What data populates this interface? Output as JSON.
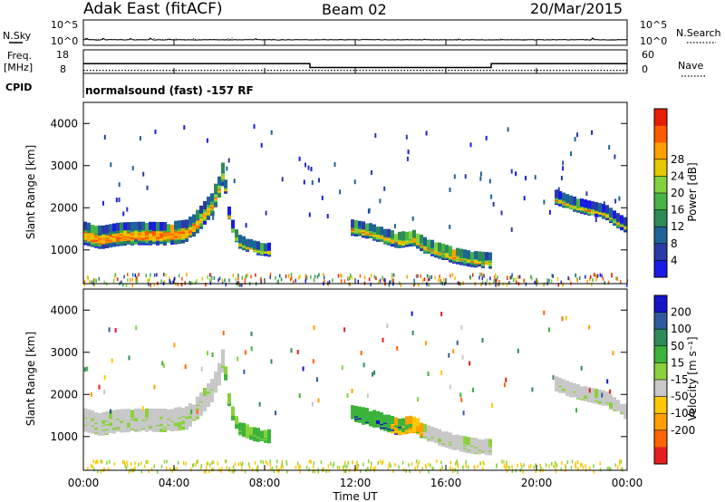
{
  "header": {
    "station": "Adak East (fitACF)",
    "beam": "Beam 02",
    "date": "20/Mar/2015"
  },
  "chart_data": [
    {
      "type": "line",
      "panel": "noise",
      "left_label": "N.Sky",
      "right_label": "N.Search",
      "y_ticks": [
        "10^5",
        "10^0"
      ],
      "x_range_ut": [
        "00:00",
        "24:00"
      ],
      "series": [
        {
          "name": "N.Sky",
          "style": "solid",
          "level_exp": 0.8
        },
        {
          "name": "N.Search",
          "style": "dotted",
          "level_exp": 0.8
        }
      ]
    },
    {
      "type": "line",
      "panel": "frequency-nave",
      "left_label_lines": [
        "Freq.",
        "[MHz]"
      ],
      "right_label": "Nave",
      "left_ticks": [
        "18",
        "8"
      ],
      "right_ticks": [
        "60",
        "0"
      ],
      "freq_ylim": [
        8,
        18
      ],
      "nave_ylim": [
        0,
        60
      ],
      "freq": {
        "x": [
          0,
          10,
          10,
          18,
          18,
          24
        ],
        "y": [
          12.1,
          12.1,
          10.3,
          10.3,
          12.1,
          12.1
        ]
      },
      "nave": {
        "x": [
          0,
          24
        ],
        "y": [
          6,
          6
        ]
      }
    },
    {
      "type": "text",
      "panel": "cpid",
      "left_label": "CPID",
      "text": "normalsound (fast) -157 RF"
    },
    {
      "type": "heatmap",
      "panel": "power",
      "ylabel": "Slant Range [km]",
      "ylim": [
        200,
        4500
      ],
      "y_ticks": [
        1000,
        2000,
        3000,
        4000
      ],
      "colorbar": {
        "label": "Power [dB]",
        "ticks": [
          4,
          8,
          12,
          16,
          20,
          24,
          28
        ],
        "colors": [
          "#1a1ae6",
          "#2a3aa8",
          "#1e6496",
          "#2e8b57",
          "#46b446",
          "#82d23c",
          "#e6c800",
          "#ffa000",
          "#ff5a00",
          "#e61e00"
        ]
      },
      "echo_bands": [
        {
          "x": [
            0.0,
            0.7,
            1.5,
            2.5,
            3.5,
            4.5,
            5.0,
            5.6,
            6.0,
            6.2
          ],
          "r": [
            1400,
            1300,
            1380,
            1400,
            1390,
            1450,
            1700,
            2100,
            2600,
            3100
          ],
          "w": 380
        },
        {
          "x": [
            6.2,
            6.4,
            6.8,
            7.5,
            8.2
          ],
          "r": [
            2500,
            1700,
            1200,
            1050,
            1000
          ],
          "w": 140
        },
        {
          "x": [
            11.8,
            12.5,
            13.2,
            13.8,
            14.5,
            15.0,
            15.6,
            16.3,
            17.0,
            17.9
          ],
          "r": [
            1540,
            1470,
            1350,
            1240,
            1300,
            1120,
            1000,
            880,
            800,
            760
          ],
          "w": 220
        },
        {
          "x": [
            20.8,
            21.5,
            22.2,
            23.0,
            23.5,
            24.0
          ],
          "r": [
            2250,
            2100,
            2000,
            1900,
            1700,
            1550
          ],
          "w": 170
        }
      ]
    },
    {
      "type": "heatmap",
      "panel": "velocity",
      "ylabel": "Slant Range [km]",
      "xlabel": "Time UT",
      "ylim": [
        200,
        4500
      ],
      "y_ticks": [
        1000,
        2000,
        3000,
        4000
      ],
      "x_ticks": [
        "00:00",
        "04:00",
        "08:00",
        "12:00",
        "16:00",
        "20:00",
        "00:00"
      ],
      "colorbar": {
        "label": "Velocity [m s⁻¹]",
        "ticks": [
          "200",
          "100",
          "50",
          "15",
          "-15",
          "-50",
          "-100",
          "-200"
        ],
        "colors": [
          "#1414c8",
          "#2f5aa0",
          "#2e8b57",
          "#3cb43c",
          "#8ad23c",
          "#c8c8c8",
          "#ffc800",
          "#ffa000",
          "#ff6400",
          "#e61e1e"
        ]
      },
      "echo_bands": [
        {
          "x": [
            0.0,
            0.7,
            1.5,
            2.5,
            3.5,
            4.5,
            5.0,
            5.6,
            6.0,
            6.2
          ],
          "r": [
            1400,
            1300,
            1380,
            1400,
            1390,
            1450,
            1700,
            2100,
            2600,
            3100
          ],
          "w": 380,
          "tone": "gray"
        },
        {
          "x": [
            6.2,
            6.4,
            6.8,
            7.5,
            8.2
          ],
          "r": [
            2500,
            1700,
            1200,
            1050,
            1000
          ],
          "w": 140,
          "tone": "green"
        },
        {
          "x": [
            11.8,
            12.5,
            13.2,
            13.8,
            14.5,
            15.0
          ],
          "r": [
            1540,
            1470,
            1350,
            1240,
            1300,
            1120
          ],
          "w": 230,
          "tone": "green-orange"
        },
        {
          "x": [
            15.0,
            15.6,
            16.3,
            17.0,
            17.9
          ],
          "r": [
            1120,
            1000,
            880,
            800,
            760
          ],
          "w": 220,
          "tone": "gray"
        },
        {
          "x": [
            20.8,
            21.5,
            22.2,
            23.0,
            23.5,
            24.0
          ],
          "r": [
            2250,
            2100,
            2000,
            1900,
            1700,
            1550
          ],
          "w": 170,
          "tone": "gray"
        }
      ]
    }
  ]
}
